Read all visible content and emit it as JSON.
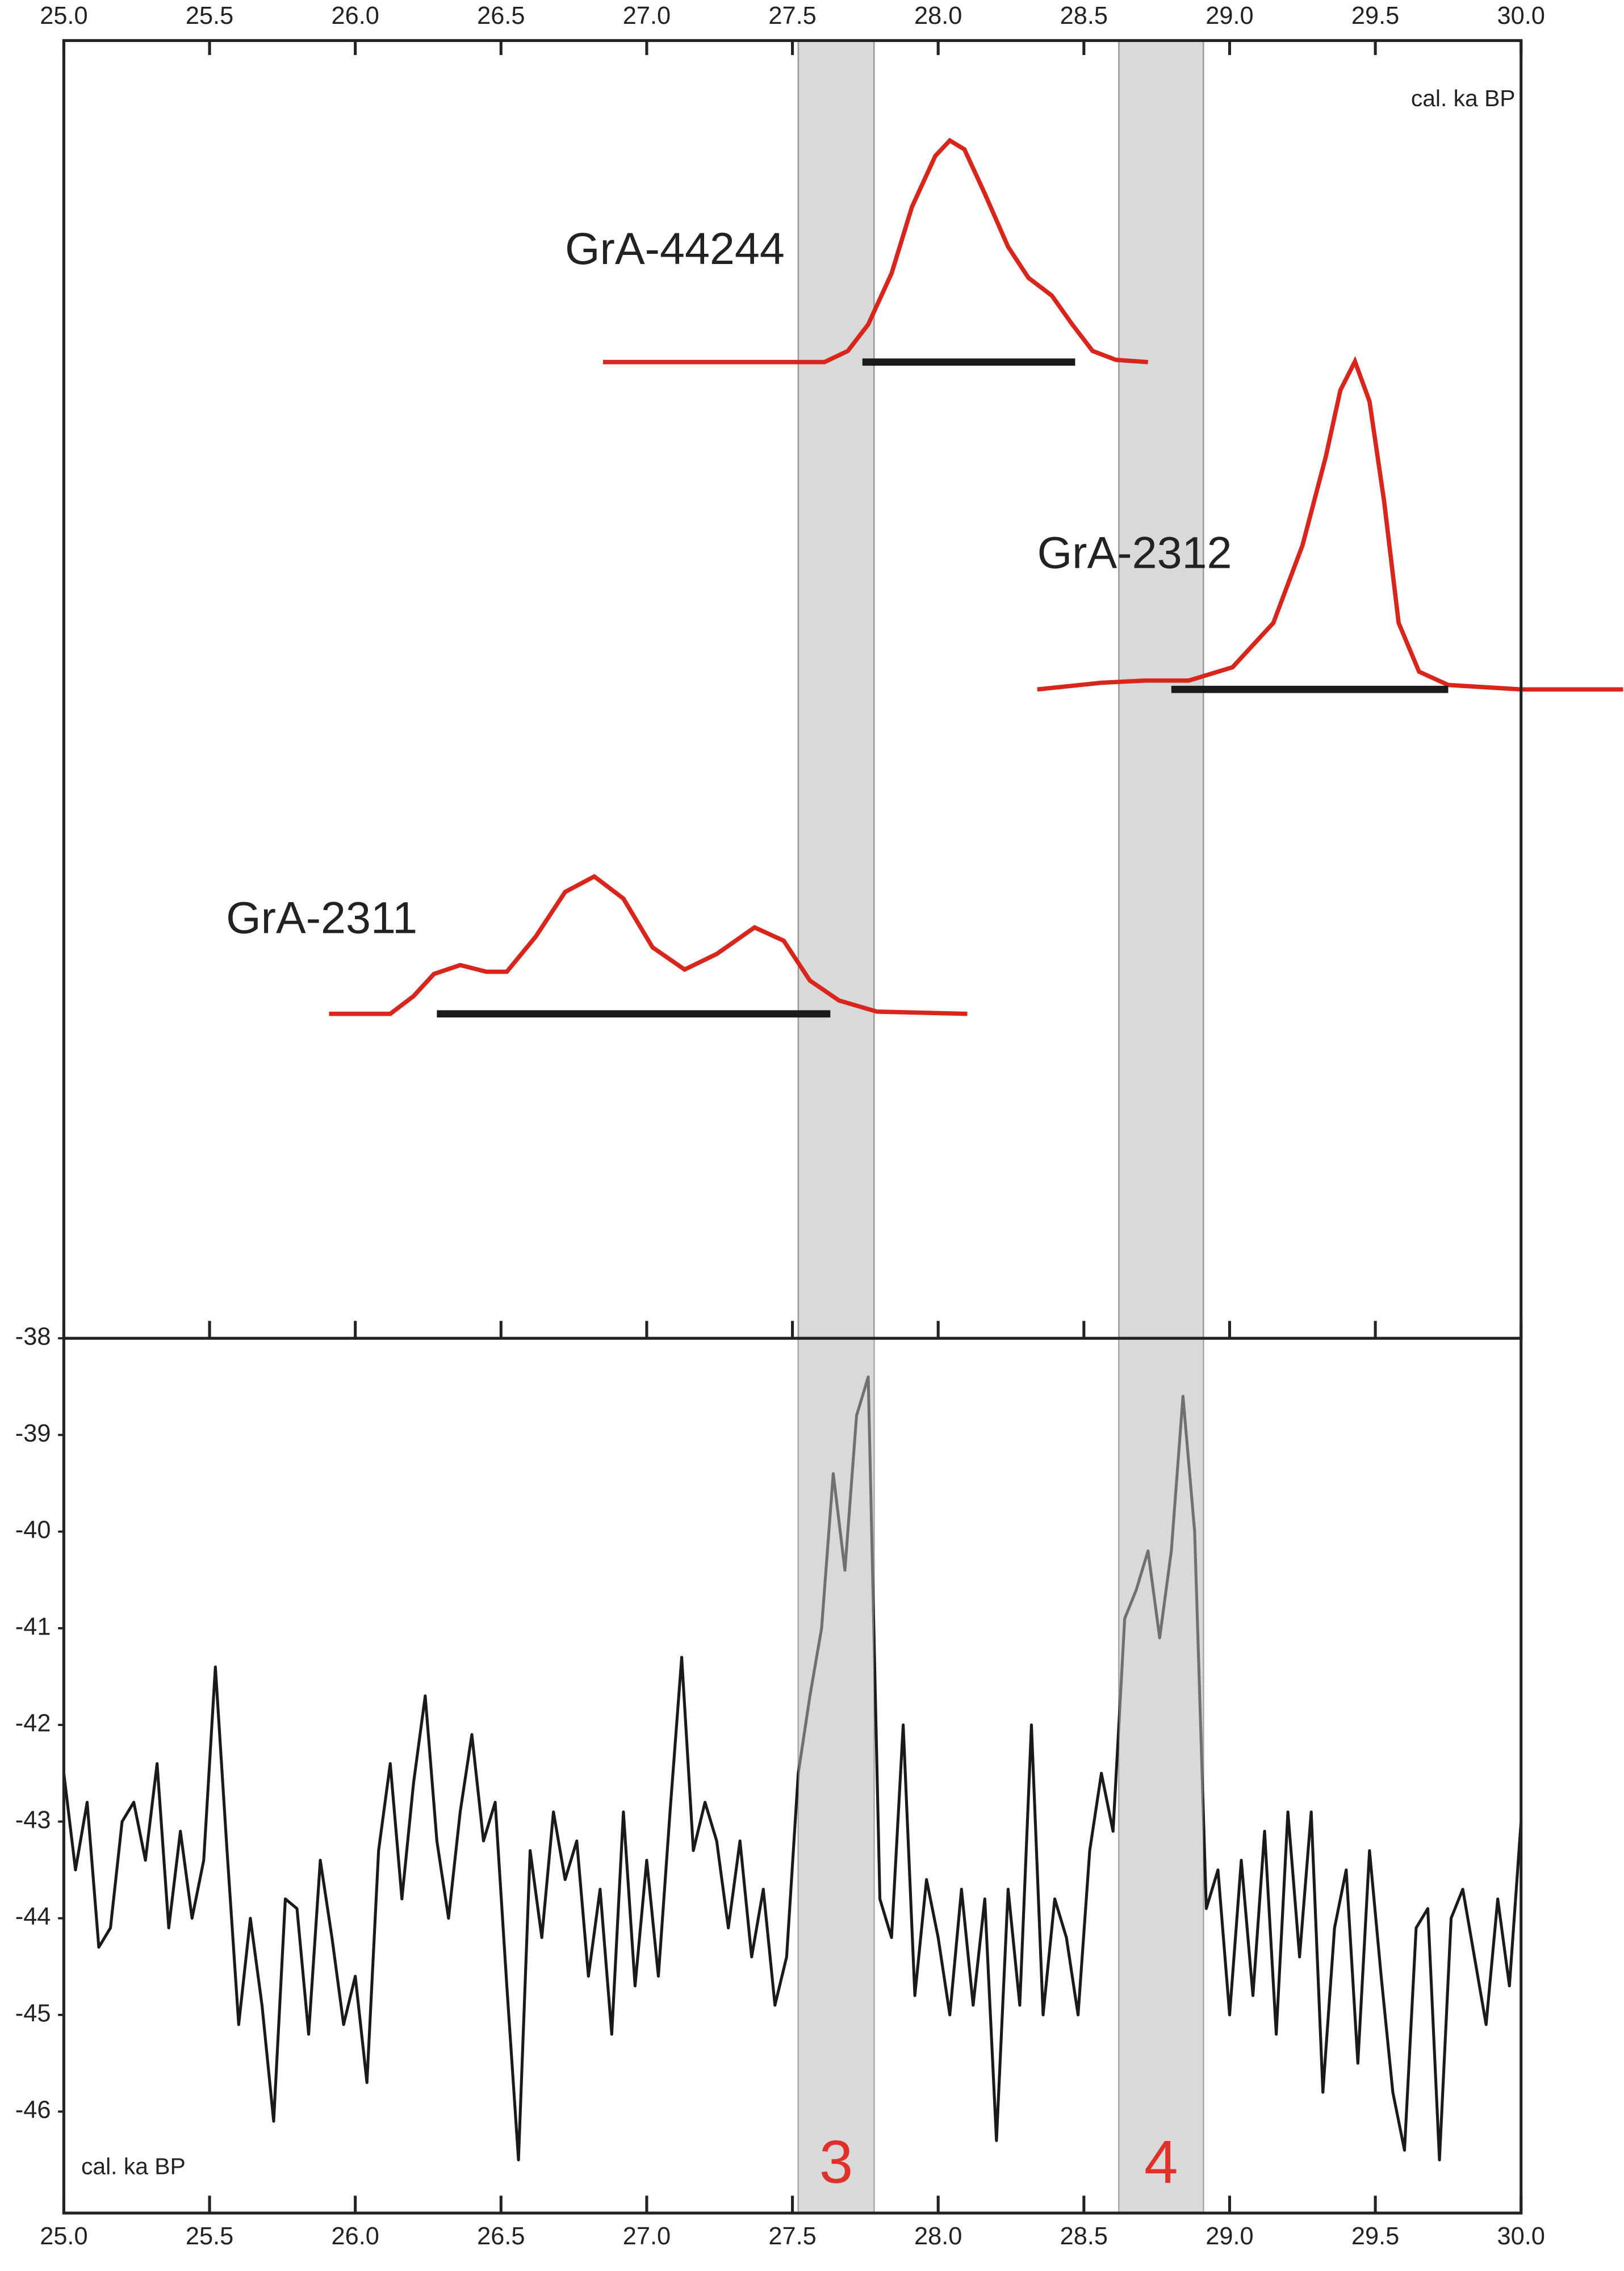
{
  "chart_data": [
    {
      "type": "density",
      "axis_label": "cal. ka BP",
      "xlim": [
        25,
        30
      ],
      "xticks": [
        {
          "value": 25,
          "label": "25.0"
        },
        25.5,
        {
          "value": 26,
          "label": "26.0"
        },
        26.5,
        {
          "value": 27,
          "label": "27.0"
        },
        27.5,
        {
          "value": 28,
          "label": "28.0"
        },
        28.5,
        {
          "value": 29,
          "label": "29.0"
        },
        29.5,
        {
          "value": 30,
          "label": "30.0"
        }
      ],
      "color": "#d9261c",
      "range_color": "#1a1a1a",
      "samples": [
        {
          "name": "GrA-44244",
          "x": [
            26.85,
            27.61,
            27.69,
            27.76,
            27.84,
            27.91,
            27.99,
            28.04,
            28.09,
            28.16,
            28.24,
            28.31,
            28.39,
            28.46,
            28.53,
            28.61,
            28.72
          ],
          "values": [
            0,
            0,
            0.05,
            0.17,
            0.4,
            0.7,
            0.93,
            1.0,
            0.96,
            0.76,
            0.52,
            0.38,
            0.3,
            0.17,
            0.05,
            0.01,
            0
          ],
          "range": [
            27.74,
            28.47
          ]
        },
        {
          "name": "GrA-2312",
          "x": [
            28.34,
            28.56,
            28.71,
            28.86,
            29.01,
            29.15,
            29.25,
            29.33,
            29.38,
            29.43,
            29.48,
            29.53,
            29.58,
            29.65,
            29.75,
            30.0,
            30.35
          ],
          "values": [
            0,
            0.03,
            0.04,
            0.04,
            0.1,
            0.3,
            0.65,
            1.05,
            1.35,
            1.48,
            1.3,
            0.85,
            0.3,
            0.08,
            0.02,
            0,
            0
          ],
          "range": [
            28.8,
            29.75
          ]
        },
        {
          "name": "GrA-2311",
          "x": [
            25.91,
            26.12,
            26.2,
            26.27,
            26.36,
            26.45,
            26.52,
            26.62,
            26.72,
            26.82,
            26.92,
            27.02,
            27.13,
            27.24,
            27.37,
            27.47,
            27.56,
            27.66,
            27.79,
            28.1
          ],
          "values": [
            0,
            0,
            0.08,
            0.18,
            0.22,
            0.19,
            0.19,
            0.35,
            0.55,
            0.62,
            0.52,
            0.3,
            0.2,
            0.27,
            0.39,
            0.33,
            0.15,
            0.06,
            0.01,
            0
          ],
          "range": [
            26.28,
            27.63
          ]
        }
      ]
    },
    {
      "type": "line",
      "axis_label": "cal. ka BP",
      "xlim": [
        25,
        30
      ],
      "xticks": [
        {
          "value": 25,
          "label": "25.0"
        },
        25.5,
        {
          "value": 26,
          "label": "26.0"
        },
        26.5,
        {
          "value": 27,
          "label": "27.0"
        },
        27.5,
        {
          "value": 28,
          "label": "28.0"
        },
        28.5,
        {
          "value": 29,
          "label": "29.0"
        },
        29.5,
        {
          "value": 30,
          "label": "30.0"
        }
      ],
      "ylim": [
        -47.05,
        -38
      ],
      "yticks": [
        -38,
        -39,
        -40,
        -41,
        -42,
        -43,
        -44,
        -45,
        -46
      ],
      "color": "#1a1a1a",
      "band_color": "#d9d9d9",
      "band_label_color": "#e0302a",
      "bands": [
        {
          "label": "3",
          "range": [
            27.52,
            27.78
          ]
        },
        {
          "label": "4",
          "range": [
            28.62,
            28.91
          ]
        }
      ],
      "x": [
        25.0,
        25.04,
        25.08,
        25.12,
        25.16,
        25.2,
        25.24,
        25.28,
        25.32,
        25.36,
        25.4,
        25.44,
        25.48,
        25.52,
        25.56,
        25.6,
        25.64,
        25.68,
        25.72,
        25.76,
        25.8,
        25.84,
        25.88,
        25.92,
        25.96,
        26.0,
        26.04,
        26.08,
        26.12,
        26.16,
        26.2,
        26.24,
        26.28,
        26.32,
        26.36,
        26.4,
        26.44,
        26.48,
        26.52,
        26.56,
        26.6,
        26.64,
        26.68,
        26.72,
        26.76,
        26.8,
        26.84,
        26.88,
        26.92,
        26.96,
        27.0,
        27.04,
        27.08,
        27.12,
        27.16,
        27.2,
        27.24,
        27.28,
        27.32,
        27.36,
        27.4,
        27.44,
        27.48,
        27.52,
        27.56,
        27.6,
        27.64,
        27.68,
        27.72,
        27.76,
        27.8,
        27.84,
        27.88,
        27.92,
        27.96,
        28.0,
        28.04,
        28.08,
        28.12,
        28.16,
        28.2,
        28.24,
        28.28,
        28.32,
        28.36,
        28.4,
        28.44,
        28.48,
        28.52,
        28.56,
        28.6,
        28.64,
        28.68,
        28.72,
        28.76,
        28.8,
        28.84,
        28.88,
        28.92,
        28.96,
        29.0,
        29.04,
        29.08,
        29.12,
        29.16,
        29.2,
        29.24,
        29.28,
        29.32,
        29.36,
        29.4,
        29.44,
        29.48,
        29.52,
        29.56,
        29.6,
        29.64,
        29.68,
        29.72,
        29.76,
        29.8,
        29.84,
        29.88,
        29.92,
        29.96,
        30.0
      ],
      "values": [
        -42.5,
        -43.5,
        -42.8,
        -44.3,
        -44.1,
        -43.0,
        -42.8,
        -43.4,
        -42.4,
        -44.1,
        -43.1,
        -44.0,
        -43.4,
        -41.4,
        -43.3,
        -45.1,
        -44.0,
        -44.9,
        -46.1,
        -43.8,
        -43.9,
        -45.2,
        -43.4,
        -44.2,
        -45.1,
        -44.6,
        -45.7,
        -43.3,
        -42.4,
        -43.8,
        -42.6,
        -41.7,
        -43.2,
        -44.0,
        -42.9,
        -42.1,
        -43.2,
        -42.8,
        -44.7,
        -46.5,
        -43.3,
        -44.2,
        -42.9,
        -43.6,
        -43.2,
        -44.6,
        -43.7,
        -45.2,
        -42.9,
        -44.7,
        -43.4,
        -44.6,
        -42.9,
        -41.3,
        -43.3,
        -42.8,
        -43.2,
        -44.1,
        -43.2,
        -44.4,
        -43.7,
        -44.9,
        -44.4,
        -42.5,
        -41.7,
        -41.0,
        -39.4,
        -40.4,
        -38.8,
        -38.4,
        -43.8,
        -44.2,
        -42.0,
        -44.8,
        -43.6,
        -44.2,
        -45.0,
        -43.7,
        -44.9,
        -43.8,
        -46.3,
        -43.7,
        -44.9,
        -42.0,
        -45.0,
        -43.8,
        -44.2,
        -45.0,
        -43.3,
        -42.5,
        -43.1,
        -40.9,
        -40.6,
        -40.2,
        -41.1,
        -40.2,
        -38.6,
        -40.0,
        -43.9,
        -43.5,
        -45.0,
        -43.4,
        -44.8,
        -43.1,
        -45.2,
        -42.9,
        -44.4,
        -42.9,
        -45.8,
        -44.1,
        -43.5,
        -45.5,
        -43.3,
        -44.6,
        -45.8,
        -46.4,
        -44.1,
        -43.9,
        -46.5,
        -44.0,
        -43.7,
        -44.4,
        -45.1,
        -43.8,
        -44.7,
        -43.0
      ]
    }
  ]
}
